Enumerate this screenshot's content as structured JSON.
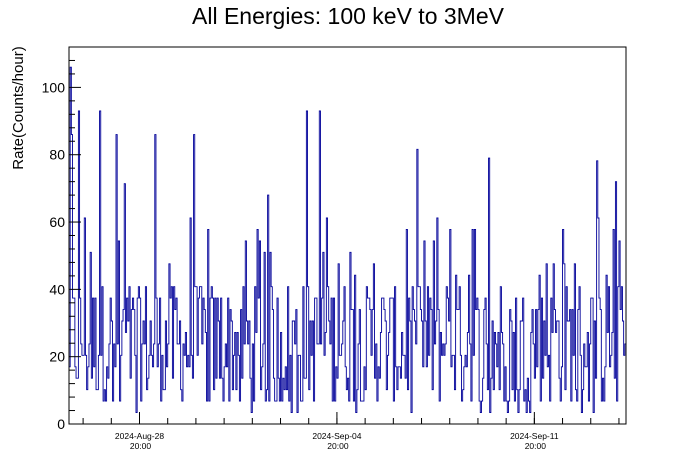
{
  "chart_data": {
    "type": "line",
    "title": "All Energies:  100 keV to 3MeV",
    "xlabel": "",
    "ylabel": "Rate(Counts/hour)",
    "x_time_range": [
      "2024-08-26 08:00",
      "2024-09-15 02:00"
    ],
    "ylim": [
      0,
      112
    ],
    "yticks": [
      0,
      20,
      40,
      60,
      80,
      100
    ],
    "xticks": [
      {
        "date": "2024-Aug-28",
        "time": "20:00"
      },
      {
        "date": "2024-Sep-04",
        "time": "20:00"
      },
      {
        "date": "2024-Sep-11",
        "time": "20:00"
      }
    ],
    "bin_width_hours": 1,
    "series": [
      {
        "name": "",
        "color": "#000099",
        "typical_range": [
          3,
          43
        ],
        "mean_approx": 20,
        "peaks": [
          {
            "date": "2024-08-26 09:00",
            "value": 106
          },
          {
            "date": "2024-08-26 10:00",
            "value": 86
          },
          {
            "date": "2024-08-26 16:00",
            "value": 93
          },
          {
            "date": "2024-08-27 10:00",
            "value": 93
          },
          {
            "date": "2024-08-28 00:00",
            "value": 86
          },
          {
            "date": "2024-08-29 09:00",
            "value": 86
          },
          {
            "date": "2024-08-30 18:00",
            "value": 86
          },
          {
            "date": "2024-09-03 18:00",
            "value": 93
          },
          {
            "date": "2024-09-04 05:00",
            "value": 93
          },
          {
            "date": "2024-09-10 05:00",
            "value": 79
          },
          {
            "date": "2024-09-14 17:00",
            "value": 72
          }
        ]
      }
    ]
  },
  "colors": {
    "series": "#000099",
    "axis": "#000000",
    "background": "#ffffff"
  }
}
